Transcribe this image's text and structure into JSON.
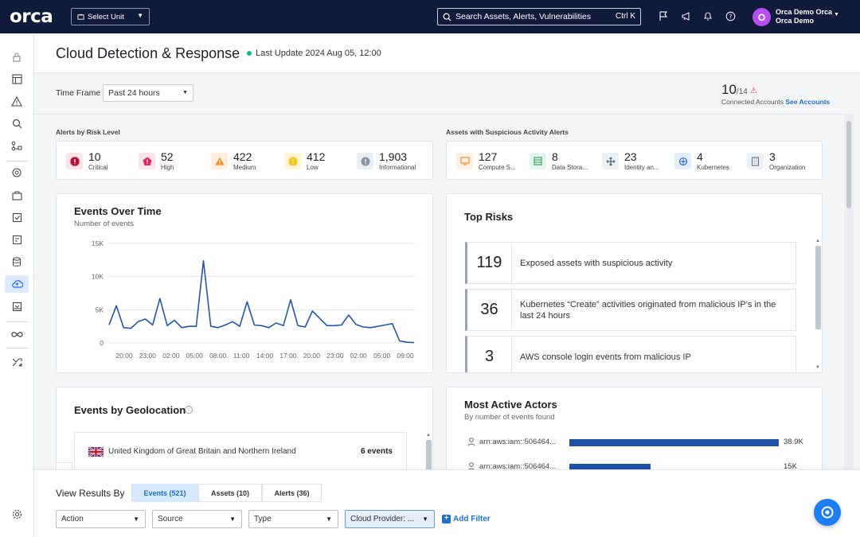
{
  "app": {
    "logo": "orca"
  },
  "topbar": {
    "unit_select": "Select Unit",
    "search_placeholder": "Search Assets, Alerts, Vulnerabilities",
    "search_shortcut": "Ctrl K",
    "avatar_initial": "O",
    "user_name": "Orca Demo Orca",
    "user_org": "Orca Demo"
  },
  "header": {
    "title": "Cloud Detection & Response",
    "last_update": "Last Update  2024 Aug 05, 12:00"
  },
  "timeframe": {
    "label": "Time Frame",
    "value": "Past 24 hours"
  },
  "accounts": {
    "connected": "10",
    "total": "/14",
    "label": "Connected Accounts",
    "link": "See Accounts"
  },
  "alerts_by_risk": {
    "title": "Alerts by Risk Level",
    "items": [
      {
        "value": "10",
        "label": "Critical",
        "color": "#b0123a"
      },
      {
        "value": "52",
        "label": "High",
        "color": "#e0245e"
      },
      {
        "value": "422",
        "label": "Medium",
        "color": "#f08c28"
      },
      {
        "value": "412",
        "label": "Low",
        "color": "#f5c518"
      },
      {
        "value": "1,903",
        "label": "Informational",
        "color": "#8c93a3"
      }
    ]
  },
  "assets_suspicious": {
    "title": "Assets with Suspicious Activity Alerts",
    "items": [
      {
        "value": "127",
        "label": "Compute S...",
        "icon": "monitor-icon"
      },
      {
        "value": "8",
        "label": "Data Stora...",
        "icon": "database-icon"
      },
      {
        "value": "23",
        "label": "Identity an...",
        "icon": "identity-icon"
      },
      {
        "value": "4",
        "label": "Kubernetes",
        "icon": "kubernetes-icon"
      },
      {
        "value": "3",
        "label": "Organization",
        "icon": "building-icon"
      }
    ]
  },
  "events_over_time": {
    "title": "Events Over Time",
    "subtitle": "Number of events"
  },
  "chart_data": {
    "type": "line",
    "title": "Events Over Time",
    "ylabel": "Number of events",
    "ylim": [
      0,
      15000
    ],
    "yticks": [
      "15K",
      "10K",
      "5K",
      "0"
    ],
    "yticks_values": [
      15000,
      10000,
      5000,
      0
    ],
    "xticks": [
      "20:00",
      "23:00",
      "02:00",
      "05:00",
      "08:00",
      "11:00",
      "14:00",
      "17:00",
      "20:00",
      "23:00",
      "02:00",
      "05:00",
      "09:00"
    ],
    "series": [
      {
        "color": "#2456a4",
        "values": [
          2700,
          5600,
          2300,
          2200,
          3200,
          3600,
          2700,
          6700,
          2600,
          3400,
          2300,
          2500,
          2500,
          12400,
          2500,
          2300,
          2700,
          3200,
          2500,
          6200,
          2700,
          2600,
          2300,
          3000,
          2600,
          6500,
          2600,
          2400,
          4800,
          3700,
          2600,
          2600,
          2700,
          4200,
          2800,
          2400,
          2300,
          2500,
          2700,
          2900,
          300,
          100,
          50
        ]
      }
    ]
  },
  "top_risks": {
    "title": "Top Risks",
    "items": [
      {
        "count": "119",
        "text": "Exposed assets with suspicious activity"
      },
      {
        "count": "36",
        "text": "Kubernetes “Create” activities originated from malicious IP’s in the last 24 hours"
      },
      {
        "count": "3",
        "text": "AWS console login events from malicious IP"
      }
    ]
  },
  "geolocation": {
    "title": "Events by Geolocation",
    "items": [
      {
        "country": "United Kingdom of Great Britain and Northern Ireland",
        "count": "6 events"
      }
    ]
  },
  "active_actors": {
    "title": "Most Active Actors",
    "subtitle": "By number of events found",
    "items": [
      {
        "name": "arn:aws:iam::506464...",
        "value": "38.9K",
        "fraction": 1.0
      },
      {
        "name": "arn:aws:iam::506464...",
        "value": "15K",
        "fraction": 0.386
      }
    ]
  },
  "results": {
    "label": "View Results By",
    "tabs": [
      {
        "label": "Events (521)",
        "active": true
      },
      {
        "label": "Assets (10)"
      },
      {
        "label": "Alerts (36)"
      }
    ],
    "filters": [
      "Action",
      "Source",
      "Type",
      "Cloud Provider: ..."
    ],
    "add_filter": "Add Filter"
  }
}
